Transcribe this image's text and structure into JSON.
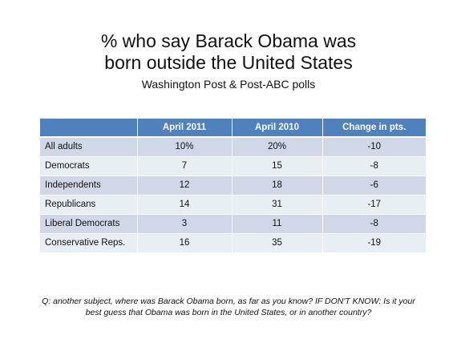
{
  "title": {
    "line1": "% who say Barack Obama was",
    "line2": "born outside the United States"
  },
  "subtitle": "Washington Post & Post-ABC polls",
  "chart_data": {
    "type": "table",
    "columns": [
      "",
      "April 2011",
      "April 2010",
      "Change in pts."
    ],
    "rows": [
      {
        "label": "All adults",
        "april_2011": "10%",
        "april_2010": "20%",
        "change": "-10"
      },
      {
        "label": "Democrats",
        "april_2011": "7",
        "april_2010": "15",
        "change": "-8"
      },
      {
        "label": "Independents",
        "april_2011": "12",
        "april_2010": "18",
        "change": "-6"
      },
      {
        "label": "Republicans",
        "april_2011": "14",
        "april_2010": "31",
        "change": "-17"
      },
      {
        "label": "Liberal Democrats",
        "april_2011": "3",
        "april_2010": "11",
        "change": "-8"
      },
      {
        "label": "Conservative Reps.",
        "april_2011": "16",
        "april_2010": "35",
        "change": "-19"
      }
    ]
  },
  "footnote": "Q: another subject, where was Barack Obama born, as far as you know? IF DON'T KNOW: Is it your best guess that Obama was born in the United States, or in another country?",
  "colors": {
    "header": "#4f81bd",
    "row_dark": "#d0d8e8",
    "row_light": "#e9edf4"
  }
}
